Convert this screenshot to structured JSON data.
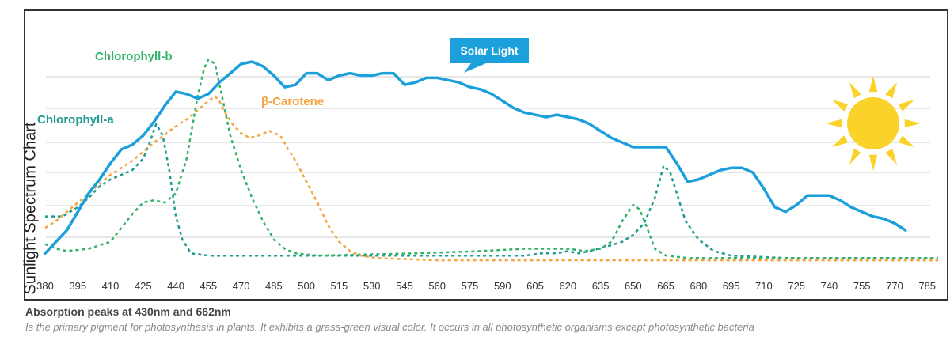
{
  "chart_data": {
    "type": "line",
    "title": "",
    "xlabel": "",
    "ylabel": "Sunlight Spectrum Chart",
    "xlim": [
      380,
      790
    ],
    "ylim": [
      0,
      100
    ],
    "x_ticks": [
      380,
      395,
      410,
      425,
      440,
      455,
      470,
      485,
      500,
      515,
      530,
      545,
      560,
      575,
      590,
      605,
      620,
      635,
      650,
      665,
      680,
      695,
      710,
      725,
      740,
      755,
      770,
      785
    ],
    "grid": "horizontal",
    "series": [
      {
        "name": "Solar Light",
        "color": "#1ba0dc",
        "style": "solid",
        "points": [
          [
            380,
            4
          ],
          [
            385,
            9
          ],
          [
            390,
            14
          ],
          [
            395,
            22
          ],
          [
            400,
            30
          ],
          [
            405,
            36
          ],
          [
            410,
            43
          ],
          [
            415,
            49
          ],
          [
            420,
            51
          ],
          [
            425,
            55
          ],
          [
            430,
            61
          ],
          [
            435,
            68
          ],
          [
            440,
            74
          ],
          [
            445,
            73
          ],
          [
            450,
            71
          ],
          [
            455,
            73
          ],
          [
            460,
            78
          ],
          [
            465,
            82
          ],
          [
            470,
            86
          ],
          [
            475,
            87
          ],
          [
            480,
            85
          ],
          [
            485,
            81
          ],
          [
            490,
            76
          ],
          [
            495,
            77
          ],
          [
            500,
            82
          ],
          [
            505,
            82
          ],
          [
            510,
            79
          ],
          [
            515,
            81
          ],
          [
            520,
            82
          ],
          [
            525,
            81
          ],
          [
            530,
            81
          ],
          [
            535,
            82
          ],
          [
            540,
            82
          ],
          [
            545,
            77
          ],
          [
            550,
            78
          ],
          [
            555,
            80
          ],
          [
            560,
            80
          ],
          [
            565,
            79
          ],
          [
            570,
            78
          ],
          [
            575,
            76
          ],
          [
            580,
            75
          ],
          [
            585,
            73
          ],
          [
            590,
            70
          ],
          [
            595,
            67
          ],
          [
            600,
            65
          ],
          [
            605,
            64
          ],
          [
            610,
            63
          ],
          [
            615,
            64
          ],
          [
            620,
            63
          ],
          [
            625,
            62
          ],
          [
            630,
            60
          ],
          [
            635,
            57
          ],
          [
            640,
            54
          ],
          [
            645,
            52
          ],
          [
            650,
            50
          ],
          [
            655,
            50
          ],
          [
            660,
            50
          ],
          [
            665,
            50
          ],
          [
            670,
            43
          ],
          [
            675,
            35
          ],
          [
            680,
            36
          ],
          [
            685,
            38
          ],
          [
            690,
            40
          ],
          [
            695,
            41
          ],
          [
            700,
            41
          ],
          [
            705,
            39
          ],
          [
            710,
            32
          ],
          [
            715,
            24
          ],
          [
            720,
            22
          ],
          [
            725,
            25
          ],
          [
            730,
            29
          ],
          [
            735,
            29
          ],
          [
            740,
            29
          ],
          [
            745,
            27
          ],
          [
            750,
            24
          ],
          [
            755,
            22
          ],
          [
            760,
            20
          ],
          [
            765,
            19
          ],
          [
            770,
            17
          ],
          [
            775,
            14
          ]
        ]
      },
      {
        "name": "Chlorophyll-a",
        "color": "#1e9a92",
        "style": "dashed",
        "points": [
          [
            380,
            20
          ],
          [
            388,
            20
          ],
          [
            395,
            24
          ],
          [
            400,
            28
          ],
          [
            405,
            33
          ],
          [
            410,
            36
          ],
          [
            415,
            38
          ],
          [
            420,
            40
          ],
          [
            425,
            45
          ],
          [
            428,
            52
          ],
          [
            431,
            60
          ],
          [
            434,
            55
          ],
          [
            437,
            40
          ],
          [
            440,
            20
          ],
          [
            443,
            10
          ],
          [
            447,
            4
          ],
          [
            455,
            3
          ],
          [
            470,
            3
          ],
          [
            500,
            3
          ],
          [
            550,
            3
          ],
          [
            600,
            3
          ],
          [
            608,
            4
          ],
          [
            615,
            4
          ],
          [
            620,
            5
          ],
          [
            625,
            4
          ],
          [
            630,
            5
          ],
          [
            638,
            7
          ],
          [
            645,
            9
          ],
          [
            650,
            12
          ],
          [
            655,
            17
          ],
          [
            660,
            28
          ],
          [
            664,
            42
          ],
          [
            667,
            39
          ],
          [
            670,
            30
          ],
          [
            674,
            18
          ],
          [
            680,
            10
          ],
          [
            687,
            5
          ],
          [
            695,
            3
          ],
          [
            720,
            2
          ],
          [
            790,
            2
          ]
        ]
      },
      {
        "name": "Chlorophyll-b",
        "color": "#34b267",
        "style": "dashed",
        "points": [
          [
            380,
            8
          ],
          [
            385,
            6
          ],
          [
            390,
            5
          ],
          [
            400,
            6
          ],
          [
            410,
            9
          ],
          [
            415,
            15
          ],
          [
            420,
            21
          ],
          [
            425,
            26
          ],
          [
            430,
            27
          ],
          [
            435,
            26
          ],
          [
            440,
            30
          ],
          [
            445,
            45
          ],
          [
            450,
            72
          ],
          [
            453,
            84
          ],
          [
            455,
            88
          ],
          [
            458,
            86
          ],
          [
            461,
            73
          ],
          [
            465,
            55
          ],
          [
            470,
            40
          ],
          [
            475,
            28
          ],
          [
            480,
            18
          ],
          [
            485,
            10
          ],
          [
            490,
            6
          ],
          [
            495,
            4
          ],
          [
            505,
            3
          ],
          [
            550,
            4
          ],
          [
            580,
            5
          ],
          [
            600,
            6
          ],
          [
            620,
            6
          ],
          [
            628,
            5
          ],
          [
            635,
            6
          ],
          [
            640,
            9
          ],
          [
            645,
            18
          ],
          [
            650,
            25
          ],
          [
            653,
            23
          ],
          [
            656,
            16
          ],
          [
            660,
            6
          ],
          [
            665,
            3
          ],
          [
            675,
            2
          ],
          [
            700,
            2
          ],
          [
            790,
            2
          ]
        ]
      },
      {
        "name": "β-Carotene",
        "color": "#f5a33c",
        "style": "dashed",
        "points": [
          [
            380,
            15
          ],
          [
            385,
            18
          ],
          [
            390,
            22
          ],
          [
            395,
            26
          ],
          [
            400,
            30
          ],
          [
            410,
            38
          ],
          [
            420,
            44
          ],
          [
            430,
            52
          ],
          [
            440,
            59
          ],
          [
            445,
            62
          ],
          [
            450,
            66
          ],
          [
            455,
            70
          ],
          [
            458,
            72
          ],
          [
            460,
            70
          ],
          [
            462,
            66
          ],
          [
            466,
            60
          ],
          [
            470,
            56
          ],
          [
            474,
            54
          ],
          [
            478,
            55
          ],
          [
            483,
            57
          ],
          [
            488,
            55
          ],
          [
            491,
            50
          ],
          [
            495,
            44
          ],
          [
            500,
            35
          ],
          [
            505,
            26
          ],
          [
            510,
            16
          ],
          [
            515,
            9
          ],
          [
            520,
            5
          ],
          [
            525,
            3
          ],
          [
            532,
            2
          ],
          [
            560,
            1
          ],
          [
            600,
            1
          ],
          [
            700,
            1
          ],
          [
            790,
            1
          ]
        ]
      }
    ],
    "annotations": [
      {
        "text": "Solar Light",
        "series": "Solar Light",
        "style": "callout"
      },
      {
        "text": "Chlorophyll-a",
        "series": "Chlorophyll-a"
      },
      {
        "text": "Chlorophyll-b",
        "series": "Chlorophyll-b"
      },
      {
        "text": "β-Carotene",
        "series": "β-Carotene"
      }
    ],
    "decoration": {
      "sun_color": "#fad22a",
      "grid_color": "#cfcfcf",
      "tick_color": "#333333"
    }
  },
  "caption": {
    "title": "Absorption peaks at 430nm and 662nm",
    "body": "Is the primary pigment for photosynthesis in plants. It exhibits a grass-green visual color. It occurs in all  photosynthetic organisms except photosynthetic bacteria"
  }
}
